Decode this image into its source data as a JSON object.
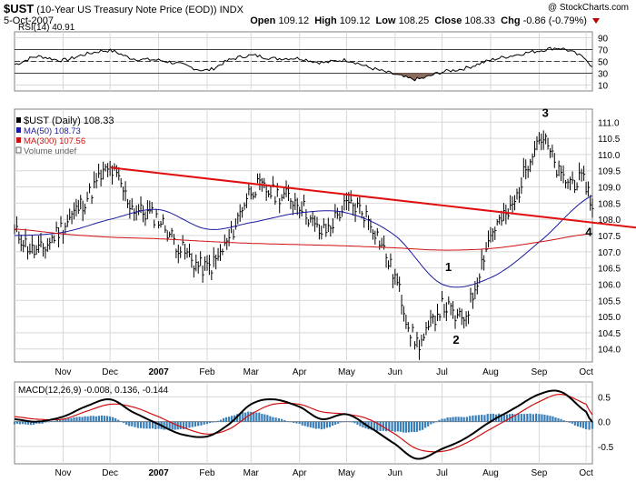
{
  "header": {
    "symbol": "$UST",
    "description": "(10-Year US Treasury Note Price (EOD))",
    "exchange": "INDX",
    "date": "5-Oct-2007",
    "copyright": "@ StockCharts.com",
    "quote": {
      "open_label": "Open",
      "open": "109.12",
      "high_label": "High",
      "high": "109.12",
      "low_label": "Low",
      "low": "108.25",
      "close_label": "Close",
      "close": "108.33",
      "chg_label": "Chg",
      "chg": "-0.86 (-0.79%)"
    }
  },
  "colors": {
    "price_bar": "#000000",
    "ma50": "#1a1aa0",
    "ma300": "#d01010",
    "trendline": "#e01010",
    "rsi_fill": "#8b6b5e",
    "macd_line": "#000000",
    "macd_signal": "#d01010",
    "histogram": "#3a7fb8",
    "grid": "#d8d8d8"
  },
  "chart_data": [
    {
      "type": "line",
      "panel": "rsi",
      "label": "RSI(14) 40.91",
      "ylim": [
        0,
        100
      ],
      "ticks": [
        90,
        70,
        50,
        30,
        10
      ],
      "reference_lines": [
        70,
        50,
        30
      ],
      "x": [
        "Oct 1 2006",
        "Oct 15",
        "Nov 1",
        "Nov 15",
        "Dec 1",
        "Dec 15",
        "Jan 1 2007",
        "Jan 15",
        "Feb 1",
        "Feb 15",
        "Mar 1",
        "Mar 15",
        "Apr 1",
        "Apr 15",
        "May 1",
        "May 15",
        "Jun 1",
        "Jun 15",
        "Jul 1",
        "Jul 15",
        "Aug 1",
        "Aug 15",
        "Sep 1",
        "Sep 15",
        "Oct 1",
        "Oct 5"
      ],
      "values": [
        45,
        58,
        52,
        62,
        68,
        55,
        52,
        45,
        35,
        52,
        60,
        55,
        55,
        48,
        52,
        40,
        28,
        20,
        32,
        38,
        52,
        60,
        68,
        72,
        55,
        41
      ]
    },
    {
      "type": "line",
      "panel": "price",
      "title": "$UST (Daily) 108.33",
      "legend": [
        "$UST (Daily) 108.33",
        "MA(50) 108.73",
        "MA(300) 107.56",
        "Volume undef"
      ],
      "ylim": [
        103.6,
        111.4
      ],
      "y_ticks": [
        "111.0",
        "110.5",
        "110.0",
        "109.5",
        "109.0",
        "108.5",
        "108.0",
        "107.5",
        "107.0",
        "106.5",
        "106.0",
        "105.5",
        "105.0",
        "104.5",
        "104.0"
      ],
      "x_ticks": [
        "Nov",
        "Dec",
        "2007",
        "Feb",
        "Mar",
        "Apr",
        "May",
        "Jun",
        "Jul",
        "Aug",
        "Sep",
        "Oct"
      ],
      "series": [
        {
          "name": "$UST (Daily)",
          "x": [
            "Oct 1 2006",
            "Oct 15",
            "Nov 1",
            "Nov 15",
            "Dec 1",
            "Dec 15",
            "Jan 1 2007",
            "Jan 15",
            "Feb 1",
            "Feb 15",
            "Mar 1",
            "Mar 15",
            "Apr 1",
            "Apr 15",
            "May 1",
            "May 15",
            "Jun 1",
            "Jun 15",
            "Jul 1",
            "Jul 15",
            "Aug 1",
            "Aug 15",
            "Sep 1",
            "Sep 15",
            "Oct 1",
            "Oct 5"
          ],
          "values": [
            107.6,
            107.0,
            107.8,
            108.6,
            109.5,
            108.4,
            108.0,
            107.1,
            106.5,
            107.4,
            108.9,
            108.8,
            108.5,
            107.6,
            108.4,
            108.0,
            106.2,
            104.2,
            105.3,
            105.0,
            107.5,
            108.4,
            110.5,
            109.3,
            109.1,
            108.33
          ]
        },
        {
          "name": "MA(50)",
          "x": [
            "Oct 1 2006",
            "Nov 1",
            "Dec 1",
            "Jan 1 2007",
            "Feb 1",
            "Mar 1",
            "Apr 1",
            "May 1",
            "Jun 1",
            "Jul 1",
            "Aug 1",
            "Sep 1",
            "Oct 5"
          ],
          "values": [
            107.5,
            107.6,
            108.0,
            108.3,
            107.7,
            107.9,
            108.2,
            108.2,
            107.5,
            106.0,
            106.2,
            107.3,
            108.73
          ]
        },
        {
          "name": "MA(300)",
          "x": [
            "Oct 1 2006",
            "Nov 1",
            "Dec 1",
            "Jan 1 2007",
            "Feb 1",
            "Mar 1",
            "Apr 1",
            "May 1",
            "Jun 1",
            "Jul 1",
            "Aug 1",
            "Sep 1",
            "Oct 5"
          ],
          "values": [
            107.7,
            107.55,
            107.45,
            107.4,
            107.32,
            107.26,
            107.22,
            107.18,
            107.12,
            107.05,
            107.1,
            107.3,
            107.56
          ]
        }
      ],
      "trendline": {
        "from": {
          "x": "Dec 1",
          "y": 109.6
        },
        "to": {
          "x": "Oct 5",
          "y": 107.9
        }
      },
      "annotations": [
        "1",
        "2",
        "3",
        "4"
      ]
    },
    {
      "type": "line",
      "panel": "macd",
      "label": "MACD(12,26,9) -0.008, 0.136, -0.144",
      "ylim": [
        -0.85,
        0.8
      ],
      "ticks": [
        "0.5",
        "0.0",
        "-0.5"
      ],
      "x_ticks": [
        "Nov",
        "Dec",
        "2007",
        "Feb",
        "Mar",
        "Apr",
        "May",
        "Jun",
        "Jul",
        "Aug",
        "Sep",
        "Oct"
      ],
      "series": [
        {
          "name": "MACD",
          "x": [
            "Oct 1 2006",
            "Oct 15",
            "Nov 1",
            "Nov 15",
            "Dec 1",
            "Dec 15",
            "Jan 1 2007",
            "Jan 15",
            "Feb 1",
            "Feb 15",
            "Mar 1",
            "Mar 15",
            "Apr 1",
            "Apr 15",
            "May 1",
            "May 15",
            "Jun 1",
            "Jun 15",
            "Jul 1",
            "Jul 15",
            "Aug 1",
            "Aug 15",
            "Sep 1",
            "Sep 15",
            "Oct 1",
            "Oct 5"
          ],
          "values": [
            0.05,
            0.0,
            0.1,
            0.3,
            0.45,
            0.2,
            -0.05,
            -0.25,
            -0.3,
            -0.05,
            0.35,
            0.45,
            0.3,
            0.05,
            0.15,
            -0.1,
            -0.45,
            -0.75,
            -0.55,
            -0.35,
            0.0,
            0.25,
            0.55,
            0.6,
            0.2,
            -0.008
          ]
        },
        {
          "name": "Signal",
          "x": [
            "Oct 1 2006",
            "Oct 15",
            "Nov 1",
            "Nov 15",
            "Dec 1",
            "Dec 15",
            "Jan 1 2007",
            "Jan 15",
            "Feb 1",
            "Feb 15",
            "Mar 1",
            "Mar 15",
            "Apr 1",
            "Apr 15",
            "May 1",
            "May 15",
            "Jun 1",
            "Jun 15",
            "Jul 1",
            "Jul 15",
            "Aug 1",
            "Aug 15",
            "Sep 1",
            "Sep 15",
            "Oct 1",
            "Oct 5"
          ],
          "values": [
            0.1,
            0.05,
            0.05,
            0.2,
            0.35,
            0.3,
            0.1,
            -0.1,
            -0.25,
            -0.15,
            0.15,
            0.35,
            0.35,
            0.2,
            0.15,
            0.05,
            -0.25,
            -0.55,
            -0.6,
            -0.45,
            -0.15,
            0.1,
            0.4,
            0.55,
            0.35,
            0.136
          ]
        },
        {
          "name": "Histogram",
          "x": [
            "Oct 1 2006",
            "Oct 15",
            "Nov 1",
            "Nov 15",
            "Dec 1",
            "Dec 15",
            "Jan 1 2007",
            "Jan 15",
            "Feb 1",
            "Feb 15",
            "Mar 1",
            "Mar 15",
            "Apr 1",
            "Apr 15",
            "May 1",
            "May 15",
            "Jun 1",
            "Jun 15",
            "Jul 1",
            "Jul 15",
            "Aug 1",
            "Aug 15",
            "Sep 1",
            "Sep 15",
            "Oct 1",
            "Oct 5"
          ],
          "values": [
            -0.05,
            -0.05,
            0.05,
            0.1,
            0.1,
            -0.1,
            -0.15,
            -0.15,
            -0.05,
            0.1,
            0.2,
            0.1,
            -0.05,
            -0.15,
            0.0,
            -0.15,
            -0.2,
            -0.2,
            0.05,
            0.1,
            0.15,
            0.15,
            0.15,
            0.05,
            -0.15,
            -0.144
          ]
        }
      ]
    }
  ]
}
